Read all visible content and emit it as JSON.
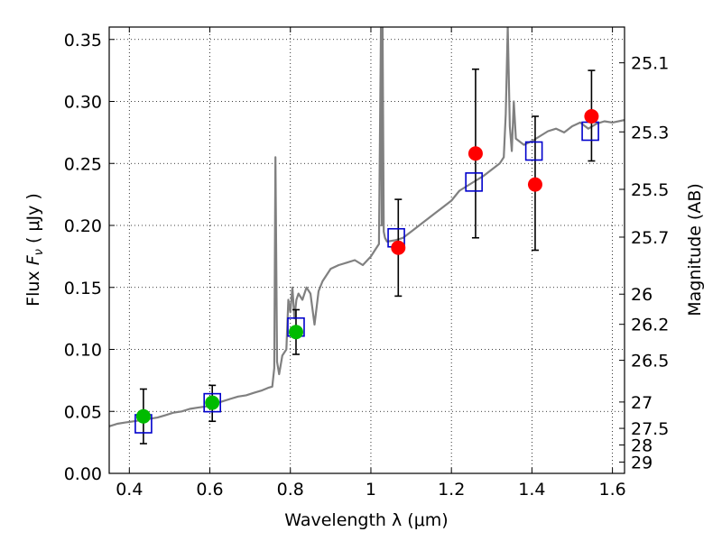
{
  "chart_data": {
    "type": "scatter",
    "xlabel": "Wavelength  λ (μm)",
    "ylabel": "Flux  F_ν  ( μJy )",
    "ylabel_parts": {
      "prefix": "Flux  ",
      "symbol": "F",
      "subscript": "ν",
      "suffix": "  ( μJy )"
    },
    "y2label": "Magnitude (AB)",
    "xlim": [
      0.35,
      1.63
    ],
    "ylim": [
      0.0,
      0.36
    ],
    "grid": true,
    "x_ticks": [
      {
        "value": 0.4,
        "label": "0.4"
      },
      {
        "value": 0.6,
        "label": "0.6"
      },
      {
        "value": 0.8,
        "label": "0.8"
      },
      {
        "value": 1.0,
        "label": "1"
      },
      {
        "value": 1.2,
        "label": "1.2"
      },
      {
        "value": 1.4,
        "label": "1.4"
      },
      {
        "value": 1.6,
        "label": "1.6"
      }
    ],
    "y_ticks": [
      {
        "value": 0.0,
        "label": "0.00"
      },
      {
        "value": 0.05,
        "label": "0.05"
      },
      {
        "value": 0.1,
        "label": "0.10"
      },
      {
        "value": 0.15,
        "label": "0.15"
      },
      {
        "value": 0.2,
        "label": "0.20"
      },
      {
        "value": 0.25,
        "label": "0.25"
      },
      {
        "value": 0.3,
        "label": "0.30"
      },
      {
        "value": 0.35,
        "label": "0.35"
      }
    ],
    "magnitude_ticks": [
      {
        "mag": 25.1,
        "label": "25.1"
      },
      {
        "mag": 25.3,
        "label": "25.3"
      },
      {
        "mag": 25.5,
        "label": "25.5"
      },
      {
        "mag": 25.7,
        "label": "25.7"
      },
      {
        "mag": 26.0,
        "label": "26"
      },
      {
        "mag": 26.2,
        "label": "26.2"
      },
      {
        "mag": 26.5,
        "label": "26.5"
      },
      {
        "mag": 27.0,
        "label": "27"
      },
      {
        "mag": 27.5,
        "label": "27.5"
      },
      {
        "mag": 28.0,
        "label": "28"
      },
      {
        "mag": 29.0,
        "label": "29"
      }
    ],
    "series": [
      {
        "name": "template_spectrum",
        "kind": "line",
        "color": "#808080",
        "x": [
          0.35,
          0.37,
          0.39,
          0.41,
          0.43,
          0.45,
          0.47,
          0.49,
          0.51,
          0.53,
          0.55,
          0.57,
          0.59,
          0.61,
          0.63,
          0.65,
          0.67,
          0.69,
          0.71,
          0.73,
          0.745,
          0.755,
          0.76,
          0.763,
          0.767,
          0.772,
          0.78,
          0.79,
          0.795,
          0.8,
          0.805,
          0.81,
          0.815,
          0.82,
          0.83,
          0.84,
          0.85,
          0.86,
          0.87,
          0.88,
          0.89,
          0.9,
          0.92,
          0.94,
          0.96,
          0.98,
          1.0,
          1.01,
          1.02,
          1.025,
          1.027,
          1.029,
          1.032,
          1.035,
          1.04,
          1.06,
          1.08,
          1.1,
          1.12,
          1.14,
          1.16,
          1.18,
          1.2,
          1.22,
          1.24,
          1.26,
          1.28,
          1.3,
          1.32,
          1.33,
          1.335,
          1.34,
          1.345,
          1.35,
          1.355,
          1.36,
          1.38,
          1.4,
          1.42,
          1.44,
          1.46,
          1.48,
          1.5,
          1.52,
          1.54,
          1.56,
          1.58,
          1.6,
          1.63
        ],
        "y": [
          0.038,
          0.04,
          0.041,
          0.042,
          0.043,
          0.044,
          0.045,
          0.047,
          0.049,
          0.05,
          0.052,
          0.053,
          0.054,
          0.056,
          0.058,
          0.06,
          0.062,
          0.063,
          0.065,
          0.067,
          0.069,
          0.07,
          0.085,
          0.255,
          0.09,
          0.08,
          0.095,
          0.1,
          0.14,
          0.13,
          0.15,
          0.125,
          0.14,
          0.145,
          0.14,
          0.15,
          0.145,
          0.12,
          0.147,
          0.155,
          0.16,
          0.165,
          0.168,
          0.17,
          0.172,
          0.168,
          0.175,
          0.18,
          0.185,
          0.36,
          0.2,
          0.36,
          0.195,
          0.19,
          0.187,
          0.188,
          0.19,
          0.195,
          0.2,
          0.205,
          0.21,
          0.215,
          0.22,
          0.228,
          0.232,
          0.236,
          0.24,
          0.245,
          0.25,
          0.255,
          0.29,
          0.36,
          0.28,
          0.26,
          0.3,
          0.27,
          0.265,
          0.268,
          0.272,
          0.276,
          0.278,
          0.275,
          0.28,
          0.283,
          0.278,
          0.282,
          0.284,
          0.283,
          0.285
        ]
      },
      {
        "name": "model_photometry",
        "kind": "open-square",
        "color": "#0000cc",
        "x": [
          0.435,
          0.606,
          0.814,
          1.063,
          1.256,
          1.405,
          1.545
        ],
        "y": [
          0.04,
          0.057,
          0.118,
          0.19,
          0.235,
          0.26,
          0.276
        ]
      },
      {
        "name": "observed_optical",
        "kind": "filled-circle",
        "color": "#00bb00",
        "x": [
          0.435,
          0.606,
          0.814
        ],
        "y": [
          0.046,
          0.057,
          0.114
        ],
        "yerr_low": [
          0.022,
          0.015,
          0.018
        ],
        "yerr_high": [
          0.022,
          0.014,
          0.018
        ]
      },
      {
        "name": "observed_nir",
        "kind": "filled-circle",
        "color": "#ff0000",
        "x": [
          1.068,
          1.26,
          1.408,
          1.548
        ],
        "y": [
          0.182,
          0.258,
          0.233,
          0.288
        ],
        "yerr_low": [
          0.039,
          0.068,
          0.053,
          0.036
        ],
        "yerr_high": [
          0.039,
          0.068,
          0.055,
          0.037
        ]
      }
    ]
  }
}
